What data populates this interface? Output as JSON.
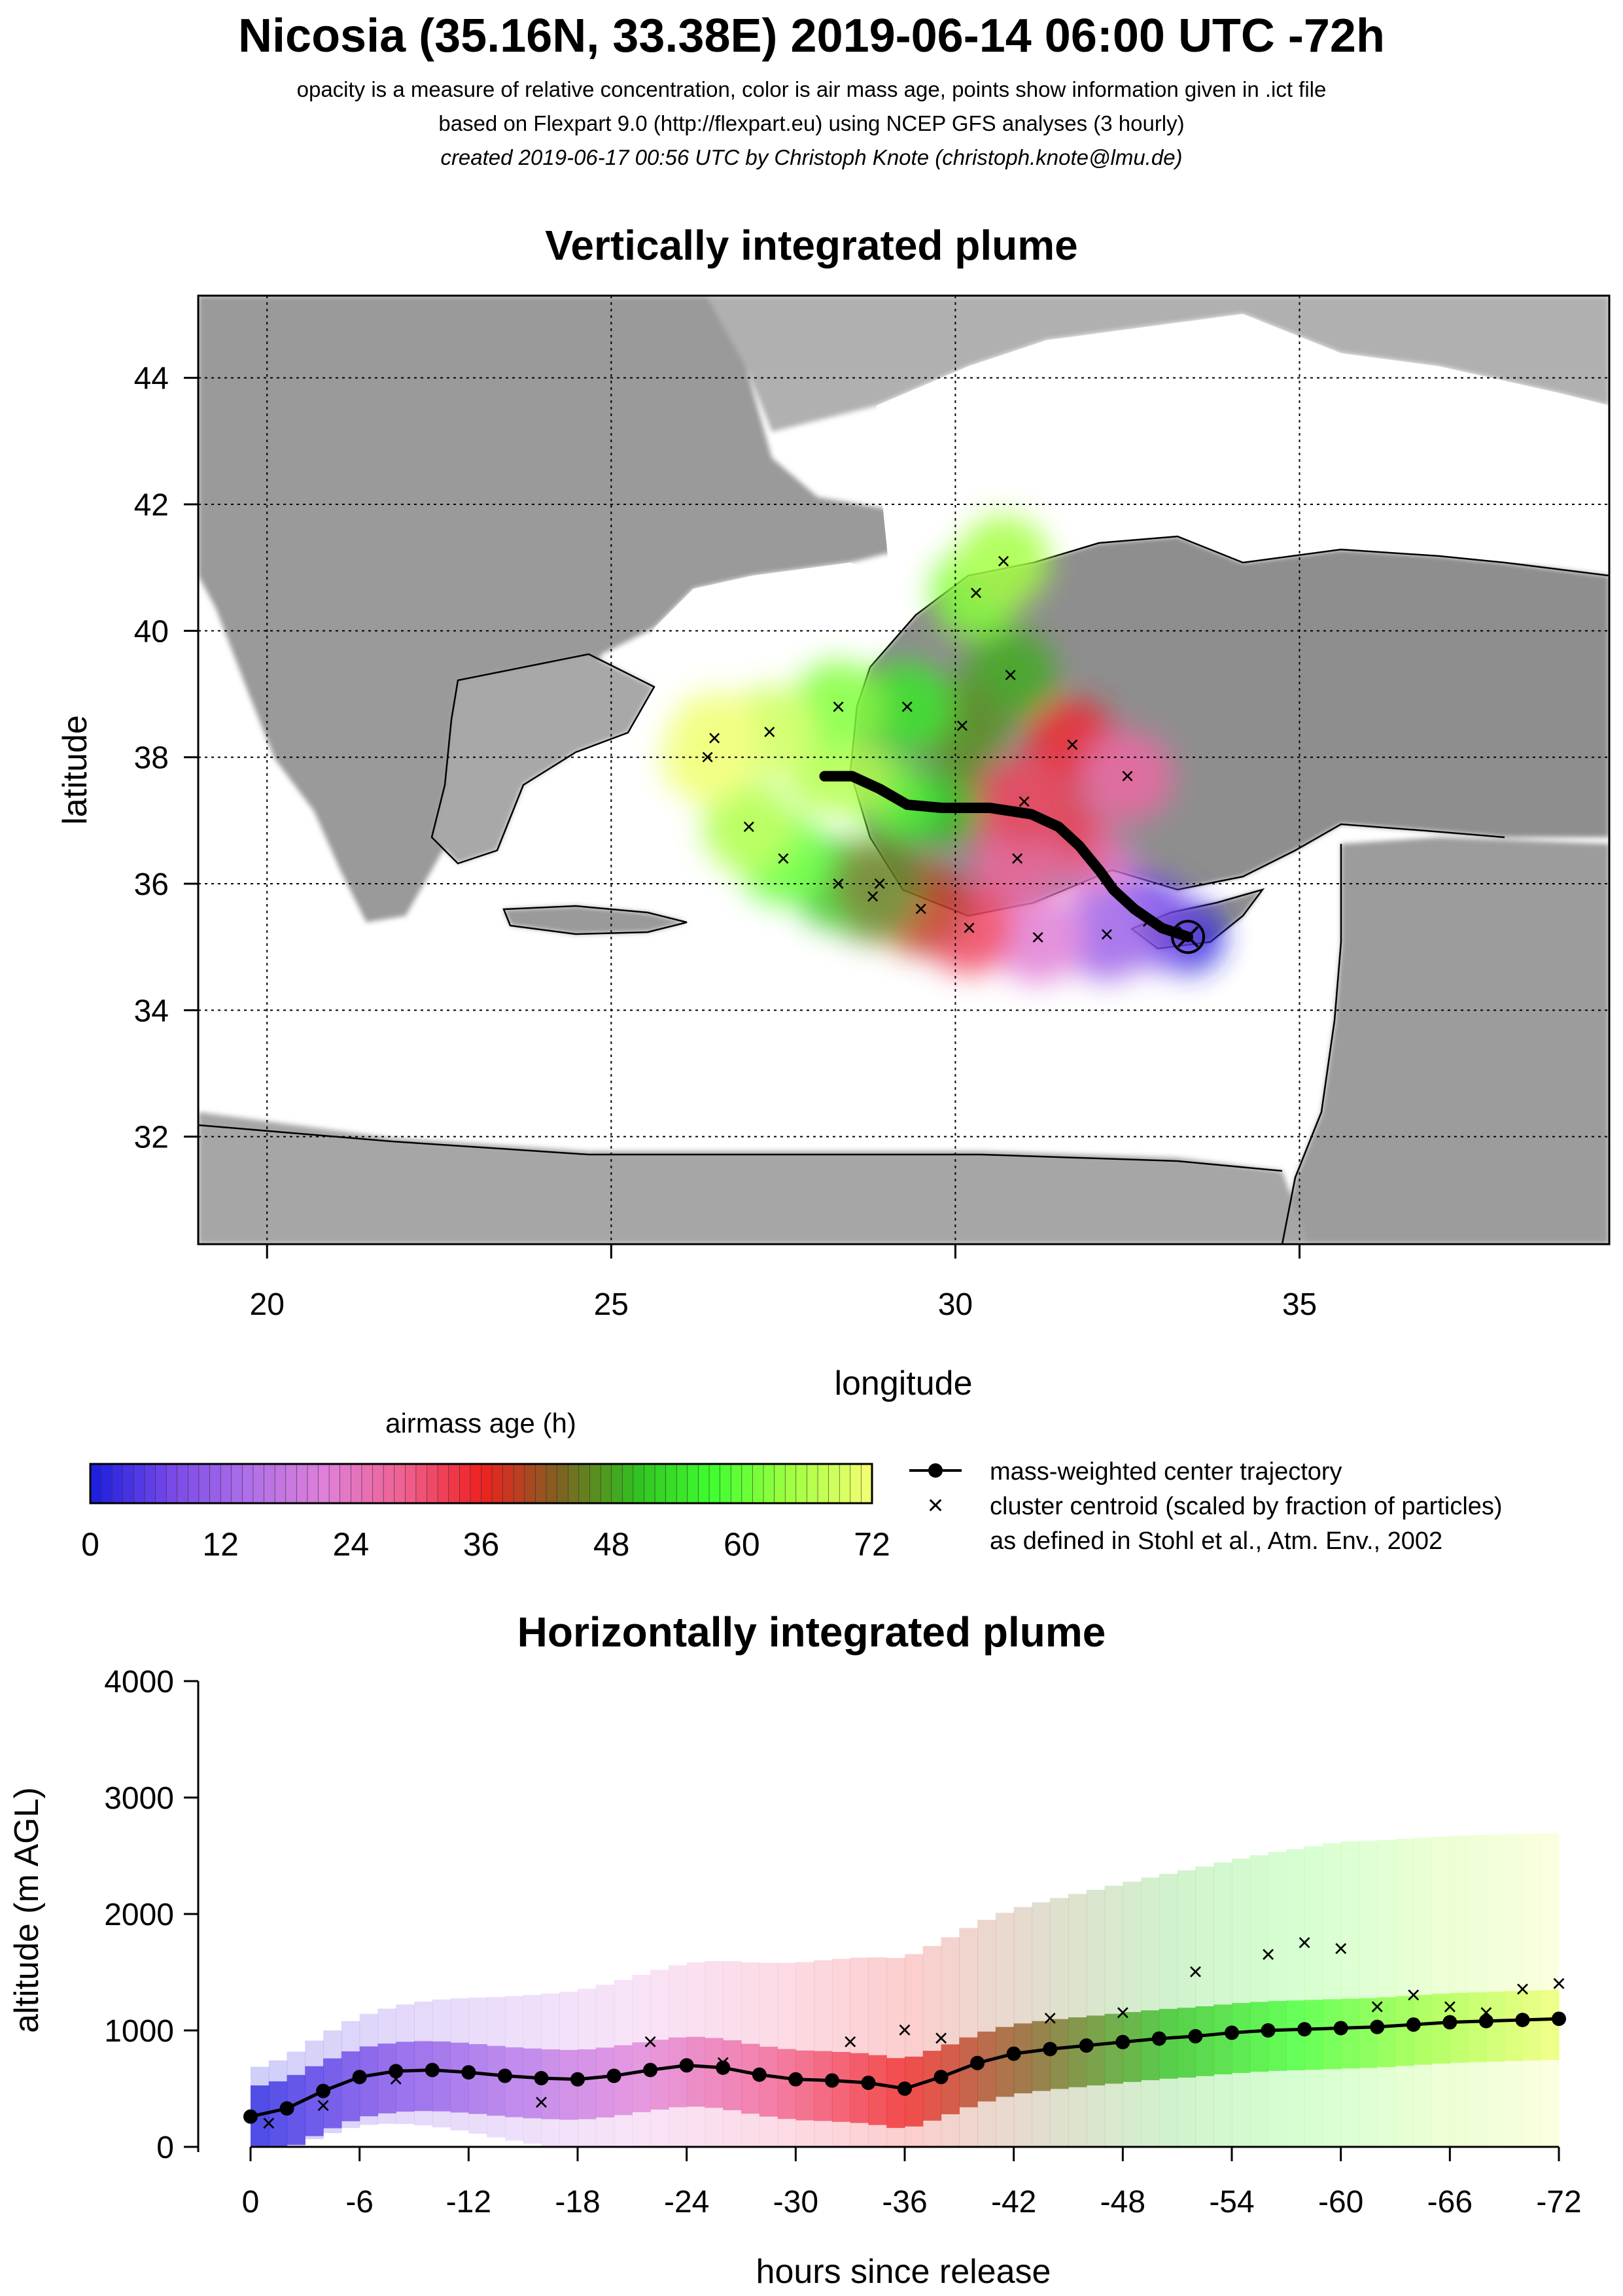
{
  "header": {
    "title": "Nicosia (35.16N, 33.38E) 2019-06-14 06:00 UTC -72h",
    "line1": "opacity is a measure of relative concentration, color is air mass age, points show information given in .ict file",
    "line2": "based on Flexpart 9.0 (http://flexpart.eu) using NCEP GFS analyses (3 hourly)",
    "line3": "created 2019-06-17 00:56 UTC by Christoph Knote (christoph.knote@lmu.de)"
  },
  "colors": {
    "age_scale": [
      "#2020e0",
      "#7a4ae8",
      "#b070e8",
      "#e080d8",
      "#f06090",
      "#f02020",
      "#806020",
      "#30c020",
      "#40ff30",
      "#a0ff40",
      "#f0ff70"
    ],
    "land_gray": "#9a9a9a",
    "sea_white": "#ffffff",
    "trajectory": "#000000"
  },
  "chart_data": [
    {
      "type": "map",
      "title": "Vertically integrated plume",
      "xlabel": "longitude",
      "ylabel": "latitude",
      "xlim": [
        19,
        39.5
      ],
      "ylim": [
        30.3,
        45.3
      ],
      "xticks": [
        20,
        25,
        30,
        35
      ],
      "yticks": [
        32,
        34,
        36,
        38,
        40,
        42,
        44
      ],
      "grid": true,
      "release_point": {
        "lon": 33.38,
        "lat": 35.16
      },
      "center_trajectory": [
        [
          33.38,
          35.16
        ],
        [
          33.0,
          35.3
        ],
        [
          32.6,
          35.6
        ],
        [
          32.3,
          35.9
        ],
        [
          32.1,
          36.2
        ],
        [
          31.8,
          36.6
        ],
        [
          31.5,
          36.9
        ],
        [
          31.1,
          37.1
        ],
        [
          30.5,
          37.2
        ],
        [
          29.8,
          37.2
        ],
        [
          29.3,
          37.25
        ],
        [
          28.9,
          37.5
        ],
        [
          28.5,
          37.7
        ],
        [
          28.1,
          37.7
        ]
      ],
      "cluster_centroids": [
        [
          32.8,
          35.4
        ],
        [
          32.2,
          35.2
        ],
        [
          31.2,
          35.15
        ],
        [
          30.2,
          35.3
        ],
        [
          29.5,
          35.6
        ],
        [
          28.8,
          35.8
        ],
        [
          28.3,
          36.0
        ],
        [
          27.5,
          36.4
        ],
        [
          27.0,
          36.9
        ],
        [
          30.8,
          39.3
        ],
        [
          30.1,
          38.5
        ],
        [
          29.3,
          38.8
        ],
        [
          28.3,
          38.8
        ],
        [
          27.3,
          38.4
        ],
        [
          26.5,
          38.3
        ],
        [
          26.4,
          38.0
        ],
        [
          31.7,
          38.2
        ],
        [
          32.5,
          37.7
        ],
        [
          30.3,
          40.6
        ],
        [
          30.7,
          41.1
        ],
        [
          30.9,
          36.4
        ],
        [
          31.0,
          37.3
        ],
        [
          28.9,
          36.0
        ]
      ],
      "plume": {
        "lon_range": [
          25.5,
          33.5
        ],
        "lat_range": [
          35.0,
          41.3
        ]
      }
    },
    {
      "type": "colorbar",
      "label": "airmass age (h)",
      "ticks": [
        0,
        12,
        24,
        36,
        48,
        60,
        72
      ],
      "range": [
        0,
        72
      ]
    },
    {
      "type": "scatter",
      "title": "Horizontally integrated plume",
      "xlabel": "hours since release",
      "ylabel": "altitude (m AGL)",
      "x_ticks": [
        0,
        -6,
        -12,
        -18,
        -24,
        -30,
        -36,
        -42,
        -48,
        -54,
        -60,
        -66,
        -72
      ],
      "y_ticks": [
        0,
        1000,
        2000,
        3000,
        4000
      ],
      "xlim": [
        0,
        -72
      ],
      "ylim": [
        0,
        4000
      ],
      "center_trajectory": {
        "hours": [
          0,
          -2,
          -4,
          -6,
          -8,
          -10,
          -12,
          -14,
          -16,
          -18,
          -20,
          -22,
          -24,
          -26,
          -28,
          -30,
          -32,
          -34,
          -36,
          -38,
          -40,
          -42,
          -44,
          -46,
          -48,
          -50,
          -52,
          -54,
          -56,
          -58,
          -60,
          -62,
          -64,
          -66,
          -68,
          -70,
          -72
        ],
        "altitude": [
          260,
          330,
          480,
          600,
          650,
          660,
          640,
          610,
          590,
          580,
          610,
          660,
          700,
          680,
          620,
          580,
          570,
          550,
          500,
          600,
          720,
          800,
          840,
          870,
          900,
          930,
          950,
          980,
          1000,
          1010,
          1020,
          1030,
          1050,
          1070,
          1080,
          1090,
          1100
        ]
      },
      "cluster_centroids": {
        "hours": [
          -1,
          -4,
          -8,
          -16,
          -22,
          -26,
          -33,
          -36,
          -38,
          -44,
          -48,
          -52,
          -56,
          -58,
          -60,
          -62,
          -64,
          -66,
          -68,
          -70,
          -72
        ],
        "altitude": [
          200,
          350,
          580,
          380,
          900,
          720,
          900,
          1000,
          930,
          1100,
          1150,
          1500,
          1650,
          1750,
          1700,
          1200,
          1300,
          1200,
          1150,
          1350,
          1400
        ]
      }
    },
    {
      "type": "legend",
      "items": [
        "mass-weighted center trajectory",
        "cluster centroid (scaled by fraction of particles)",
        "as defined in Stohl et al., Atm. Env., 2002"
      ]
    }
  ]
}
